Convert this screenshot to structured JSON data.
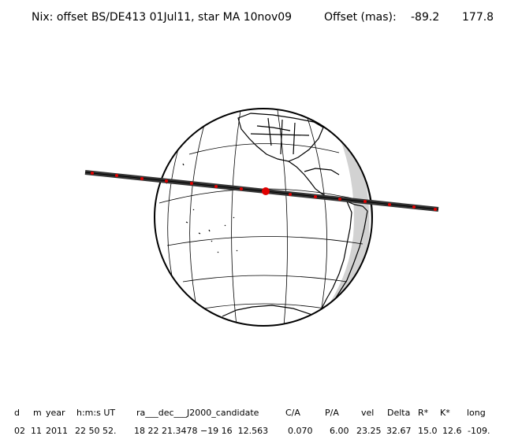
{
  "title": "Nix: offset BS/DE413 01Jul11, star MA 10nov09",
  "offset": {
    "label": "Offset (mas):",
    "x": "-89.2",
    "y": "177.8"
  },
  "occultation_track": {
    "line_color": "#333333",
    "point_color": "#e00000"
  },
  "table": {
    "headers": [
      "d",
      "m",
      "year",
      "h:m:s UT",
      "ra___dec___J2000_candidate",
      "C/A",
      "P/A",
      "vel",
      "Delta",
      "R*",
      "K*",
      "long"
    ],
    "values": [
      "02",
      "11",
      "2011",
      "22 50 52.",
      "18 22 21.3478 −19 16  12.563",
      "0.070",
      "6.00",
      "23.25",
      "32.67",
      "15.0",
      "12.6",
      "-109."
    ]
  }
}
